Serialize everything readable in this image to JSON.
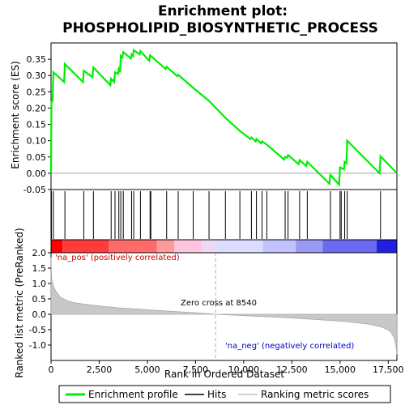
{
  "chart_data": {
    "type": "line",
    "title": "Enrichment plot:",
    "subtitle": "PHOSPHOLIPID_BIOSYNTHETIC_PROCESS",
    "top_panel": {
      "ylabel": "Enrichment score (ES)",
      "ylim": [
        -0.05,
        0.4
      ],
      "yticks": [
        -0.05,
        0.0,
        0.05,
        0.1,
        0.15,
        0.2,
        0.25,
        0.3,
        0.35
      ],
      "ytick_labels": [
        "-0.05",
        "0.00",
        "0.05",
        "0.10",
        "0.15",
        "0.20",
        "0.25",
        "0.30",
        "0.35"
      ],
      "es_curve": [
        [
          0,
          0.0
        ],
        [
          20,
          0.22
        ],
        [
          80,
          0.222
        ],
        [
          120,
          0.31
        ],
        [
          680,
          0.28
        ],
        [
          720,
          0.335
        ],
        [
          1660,
          0.28
        ],
        [
          1700,
          0.315
        ],
        [
          2150,
          0.295
        ],
        [
          2200,
          0.325
        ],
        [
          3080,
          0.27
        ],
        [
          3120,
          0.29
        ],
        [
          3280,
          0.28
        ],
        [
          3320,
          0.31
        ],
        [
          3480,
          0.305
        ],
        [
          3520,
          0.32
        ],
        [
          3580,
          0.31
        ],
        [
          3620,
          0.36
        ],
        [
          3700,
          0.355
        ],
        [
          3750,
          0.372
        ],
        [
          4140,
          0.352
        ],
        [
          4180,
          0.365
        ],
        [
          4250,
          0.36
        ],
        [
          4290,
          0.378
        ],
        [
          4600,
          0.365
        ],
        [
          4640,
          0.375
        ],
        [
          5100,
          0.345
        ],
        [
          5140,
          0.362
        ],
        [
          5950,
          0.32
        ],
        [
          6000,
          0.327
        ],
        [
          6550,
          0.298
        ],
        [
          6600,
          0.302
        ],
        [
          7380,
          0.262
        ],
        [
          8200,
          0.222
        ],
        [
          9050,
          0.17
        ],
        [
          9800,
          0.13
        ],
        [
          10350,
          0.105
        ],
        [
          10400,
          0.11
        ],
        [
          10620,
          0.098
        ],
        [
          10660,
          0.105
        ],
        [
          10900,
          0.092
        ],
        [
          10950,
          0.098
        ],
        [
          11200,
          0.088
        ],
        [
          12100,
          0.042
        ],
        [
          12150,
          0.05
        ],
        [
          12250,
          0.048
        ],
        [
          12300,
          0.056
        ],
        [
          12850,
          0.028
        ],
        [
          12900,
          0.04
        ],
        [
          13250,
          0.022
        ],
        [
          13300,
          0.035
        ],
        [
          14450,
          -0.032
        ],
        [
          14500,
          -0.005
        ],
        [
          14950,
          -0.035
        ],
        [
          15000,
          0.018
        ],
        [
          15200,
          0.012
        ],
        [
          15240,
          0.035
        ],
        [
          15330,
          0.03
        ],
        [
          15370,
          0.1
        ],
        [
          17050,
          0.0
        ],
        [
          17100,
          0.052
        ],
        [
          17950,
          0.0
        ]
      ],
      "hits": [
        20,
        120,
        720,
        1700,
        2200,
        3120,
        3320,
        3520,
        3620,
        3750,
        4180,
        4290,
        4640,
        5140,
        5180,
        6000,
        6600,
        7380,
        8200,
        9050,
        9800,
        10400,
        10660,
        10950,
        11200,
        12150,
        12300,
        12900,
        13300,
        14500,
        15000,
        15060,
        15240,
        15370,
        17100
      ],
      "ranking_bar": [
        {
          "from": 0,
          "to": 600,
          "color": "#ff0000"
        },
        {
          "from": 600,
          "to": 3000,
          "color": "#ff3b3b"
        },
        {
          "from": 3000,
          "to": 5500,
          "color": "#ff6b6b"
        },
        {
          "from": 5500,
          "to": 6400,
          "color": "#ff9a9a"
        },
        {
          "from": 6400,
          "to": 7800,
          "color": "#ffc4e0"
        },
        {
          "from": 7800,
          "to": 8540,
          "color": "#f0d8f0"
        },
        {
          "from": 8540,
          "to": 11000,
          "color": "#dcdcff"
        },
        {
          "from": 11000,
          "to": 12700,
          "color": "#c2c2ff"
        },
        {
          "from": 12700,
          "to": 14100,
          "color": "#9a9af5"
        },
        {
          "from": 14100,
          "to": 16900,
          "color": "#6a6af0"
        },
        {
          "from": 16900,
          "to": 17950,
          "color": "#2020e0"
        }
      ]
    },
    "bottom_panel": {
      "ylabel": "Ranked list metric (PreRanked)",
      "xlabel": "Rank in Ordered Dataset",
      "ylim": [
        -1.5,
        2.0
      ],
      "yticks": [
        -1.0,
        -0.5,
        0.0,
        0.5,
        1.0,
        1.5,
        2.0
      ],
      "ytick_labels": [
        "-1.0",
        "-0.5",
        "0.0",
        "0.5",
        "1.0",
        "1.5",
        "2.0"
      ],
      "xlim": [
        0,
        17950
      ],
      "xticks": [
        0,
        2500,
        5000,
        7500,
        10000,
        12500,
        15000,
        17500
      ],
      "xtick_labels": [
        "0",
        "2,500",
        "5,000",
        "7,500",
        "10,000",
        "12,500",
        "15,000",
        "17,500"
      ],
      "metric_curve": [
        [
          0,
          1.85
        ],
        [
          30,
          1.2
        ],
        [
          100,
          0.95
        ],
        [
          250,
          0.75
        ],
        [
          500,
          0.55
        ],
        [
          800,
          0.45
        ],
        [
          1200,
          0.38
        ],
        [
          1800,
          0.32
        ],
        [
          2500,
          0.27
        ],
        [
          3500,
          0.21
        ],
        [
          4500,
          0.17
        ],
        [
          5500,
          0.13
        ],
        [
          6500,
          0.09
        ],
        [
          7500,
          0.05
        ],
        [
          8540,
          0.0
        ],
        [
          9500,
          -0.03
        ],
        [
          10500,
          -0.06
        ],
        [
          11500,
          -0.09
        ],
        [
          12500,
          -0.12
        ],
        [
          13500,
          -0.16
        ],
        [
          14500,
          -0.2
        ],
        [
          15500,
          -0.25
        ],
        [
          16500,
          -0.32
        ],
        [
          17200,
          -0.42
        ],
        [
          17600,
          -0.55
        ],
        [
          17800,
          -0.75
        ],
        [
          17900,
          -1.0
        ],
        [
          17950,
          -1.3
        ]
      ],
      "zero_cross_rank": 8540,
      "zero_cross_label": "Zero cross at 8540",
      "pos_label": "'na_pos' (positively correlated)",
      "neg_label": "'na_neg' (negatively correlated)"
    },
    "legend": {
      "placement": "bottom",
      "items": [
        {
          "label": "Enrichment profile",
          "color": "#00ee00"
        },
        {
          "label": "Hits",
          "color": "#000000"
        },
        {
          "label": "Ranking metric scores",
          "color": "#c0c0c0"
        }
      ]
    }
  }
}
